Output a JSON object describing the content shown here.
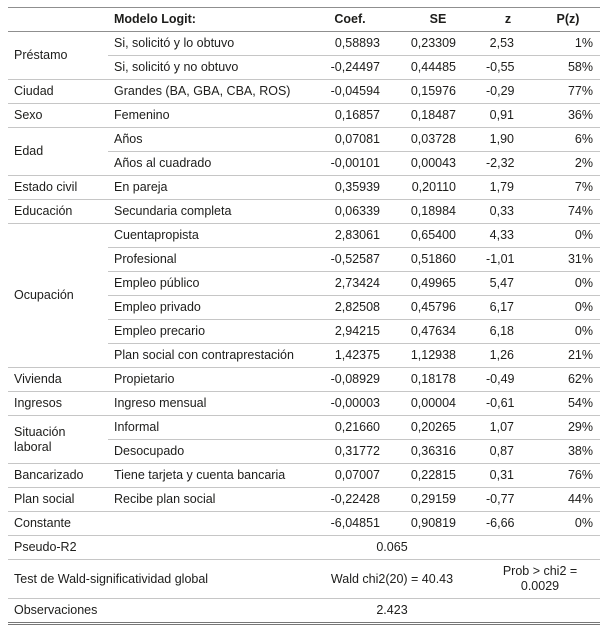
{
  "table": {
    "headers": {
      "category": "",
      "variable": "Modelo Logit:",
      "coef": "Coef.",
      "se": "SE",
      "z": "z",
      "pz": "P(z)"
    },
    "groups": [
      {
        "category": "Préstamo",
        "rows": [
          {
            "variable": "Si, solicitó y lo obtuvo",
            "coef": "0,58893",
            "se": "0,23309",
            "z": "2,53",
            "pz": "1%"
          },
          {
            "variable": "Si, solicitó y no obtuvo",
            "coef": "-0,24497",
            "se": "0,44485",
            "z": "-0,55",
            "pz": "58%"
          }
        ]
      },
      {
        "category": "Ciudad",
        "rows": [
          {
            "variable": "Grandes (BA, GBA, CBA, ROS)",
            "coef": "-0,04594",
            "se": "0,15976",
            "z": "-0,29",
            "pz": "77%"
          }
        ]
      },
      {
        "category": "Sexo",
        "rows": [
          {
            "variable": "Femenino",
            "coef": "0,16857",
            "se": "0,18487",
            "z": "0,91",
            "pz": "36%"
          }
        ]
      },
      {
        "category": "Edad",
        "rows": [
          {
            "variable": "Años",
            "coef": "0,07081",
            "se": "0,03728",
            "z": "1,90",
            "pz": "6%"
          },
          {
            "variable": "Años al cuadrado",
            "coef": "-0,00101",
            "se": "0,00043",
            "z": "-2,32",
            "pz": "2%"
          }
        ]
      },
      {
        "category": "Estado civil",
        "rows": [
          {
            "variable": "En pareja",
            "coef": "0,35939",
            "se": "0,20110",
            "z": "1,79",
            "pz": "7%"
          }
        ]
      },
      {
        "category": "Educación",
        "rows": [
          {
            "variable": "Secundaria completa",
            "coef": "0,06339",
            "se": "0,18984",
            "z": "0,33",
            "pz": "74%"
          }
        ]
      },
      {
        "category": "Ocupación",
        "rows": [
          {
            "variable": "Cuentapropista",
            "coef": "2,83061",
            "se": "0,65400",
            "z": "4,33",
            "pz": "0%"
          },
          {
            "variable": "Profesional",
            "coef": "-0,52587",
            "se": "0,51860",
            "z": "-1,01",
            "pz": "31%"
          },
          {
            "variable": "Empleo público",
            "coef": "2,73424",
            "se": "0,49965",
            "z": "5,47",
            "pz": "0%"
          },
          {
            "variable": "Empleo privado",
            "coef": "2,82508",
            "se": "0,45796",
            "z": "6,17",
            "pz": "0%"
          },
          {
            "variable": "Empleo precario",
            "coef": "2,94215",
            "se": "0,47634",
            "z": "6,18",
            "pz": "0%"
          },
          {
            "variable": "Plan social con contraprestación",
            "coef": "1,42375",
            "se": "1,12938",
            "z": "1,26",
            "pz": "21%"
          }
        ]
      },
      {
        "category": "Vivienda",
        "rows": [
          {
            "variable": "Propietario",
            "coef": "-0,08929",
            "se": "0,18178",
            "z": "-0,49",
            "pz": "62%"
          }
        ]
      },
      {
        "category": "Ingresos",
        "rows": [
          {
            "variable": "Ingreso mensual",
            "coef": "-0,00003",
            "se": "0,00004",
            "z": "-0,61",
            "pz": "54%"
          }
        ]
      },
      {
        "category": "Situación laboral",
        "rows": [
          {
            "variable": "Informal",
            "coef": "0,21660",
            "se": "0,20265",
            "z": "1,07",
            "pz": "29%"
          },
          {
            "variable": "Desocupado",
            "coef": "0,31772",
            "se": "0,36316",
            "z": "0,87",
            "pz": "38%"
          }
        ]
      },
      {
        "category": "Bancarizado",
        "rows": [
          {
            "variable": "Tiene tarjeta y cuenta bancaria",
            "coef": "0,07007",
            "se": "0,22815",
            "z": "0,31",
            "pz": "76%"
          }
        ]
      },
      {
        "category": "Plan social",
        "rows": [
          {
            "variable": "Recibe plan social",
            "coef": "-0,22428",
            "se": "0,29159",
            "z": "-0,77",
            "pz": "44%"
          }
        ]
      },
      {
        "category": "Constante",
        "rows": [
          {
            "variable": "",
            "coef": "-6,04851",
            "se": "0,90819",
            "z": "-6,66",
            "pz": "0%"
          }
        ]
      }
    ],
    "summary": [
      {
        "label": "Pseudo-R2",
        "value": "0.065"
      },
      {
        "label": "Test de Wald-significatividad global",
        "left": "Wald chi2(20) = 40.43",
        "right": "Prob > chi2 = 0.0029"
      },
      {
        "label": "Observaciones",
        "value": "2.423"
      }
    ]
  }
}
